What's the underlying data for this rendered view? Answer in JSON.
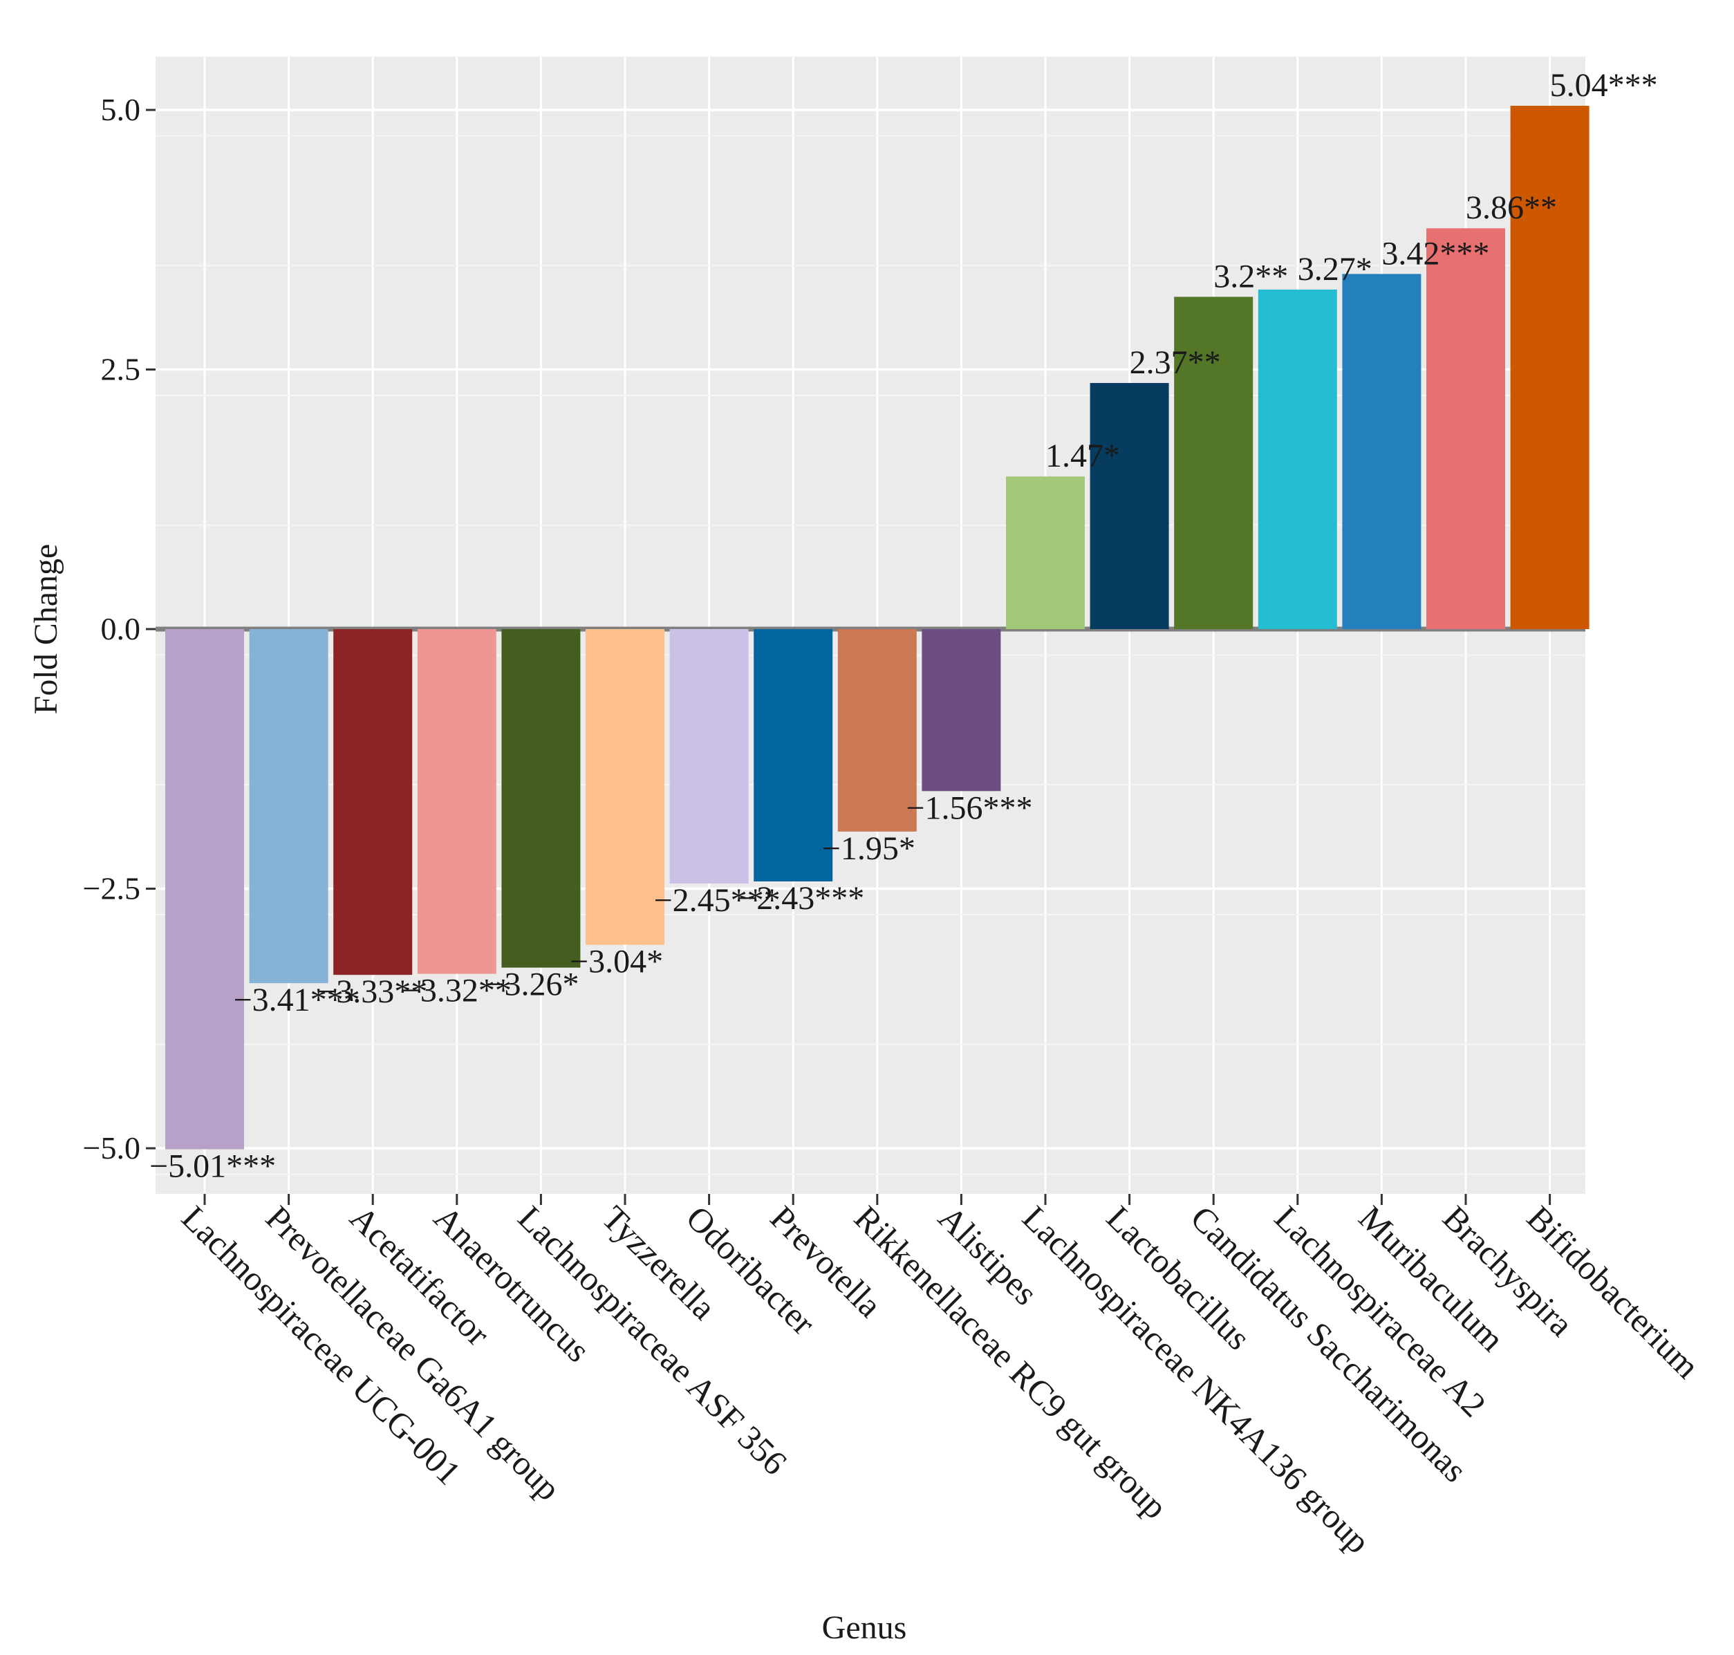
{
  "chart_data": {
    "type": "bar",
    "xlabel": "Genus",
    "ylabel": "Fold Change",
    "ylim": [
      -5.5,
      5.5
    ],
    "yticks": [
      5.0,
      2.5,
      0.0,
      -2.5,
      -5.0
    ],
    "ytick_labels": [
      "5.0",
      "2.5",
      "0.0",
      "−2.5",
      "−5.0"
    ],
    "grid": true,
    "categories": [
      "Lachnospiraceae UCG-001",
      "Prevotellaceae Ga6A1 group",
      "Acetatifactor",
      "Anaerotruncus",
      "Lachnospiraceae ASF 356",
      "Tyzzerella",
      "Odoribacter",
      "Prevotella",
      "Rikkenellaceae RC9 gut group",
      "Alistipes",
      "Lachnospiraceae NK4A136 group",
      "Lactobacillus",
      "Candidatus Saccharimonas",
      "Lachnospiraceae A2",
      "Muribaculum",
      "Brachyspira",
      "Bifidobacterium"
    ],
    "values": [
      -5.01,
      -3.41,
      -3.33,
      -3.32,
      -3.26,
      -3.04,
      -2.45,
      -2.43,
      -1.95,
      -1.56,
      1.47,
      2.37,
      3.2,
      3.27,
      3.42,
      3.86,
      5.04
    ],
    "data_labels": [
      "−5.01***",
      "−3.41***",
      "−3.33**",
      "−3.32**",
      "−3.26*",
      "−3.04*",
      "−2.45***",
      "−2.43***",
      "−1.95*",
      "−1.56***",
      "1.47*",
      "2.37**",
      "3.2**",
      "3.27*",
      "3.42***",
      "3.86**",
      "5.04***"
    ],
    "colors": [
      "#b7a1c9",
      "#87b2d8",
      "#8b2525",
      "#ef9594",
      "#435e1e",
      "#fdbf8c",
      "#cdc0e6",
      "#03659f",
      "#cc7854",
      "#6c4d84",
      "#a3c878",
      "#073c61",
      "#537627",
      "#23bcd1",
      "#2480bd",
      "#e77070",
      "#cd5800"
    ]
  }
}
